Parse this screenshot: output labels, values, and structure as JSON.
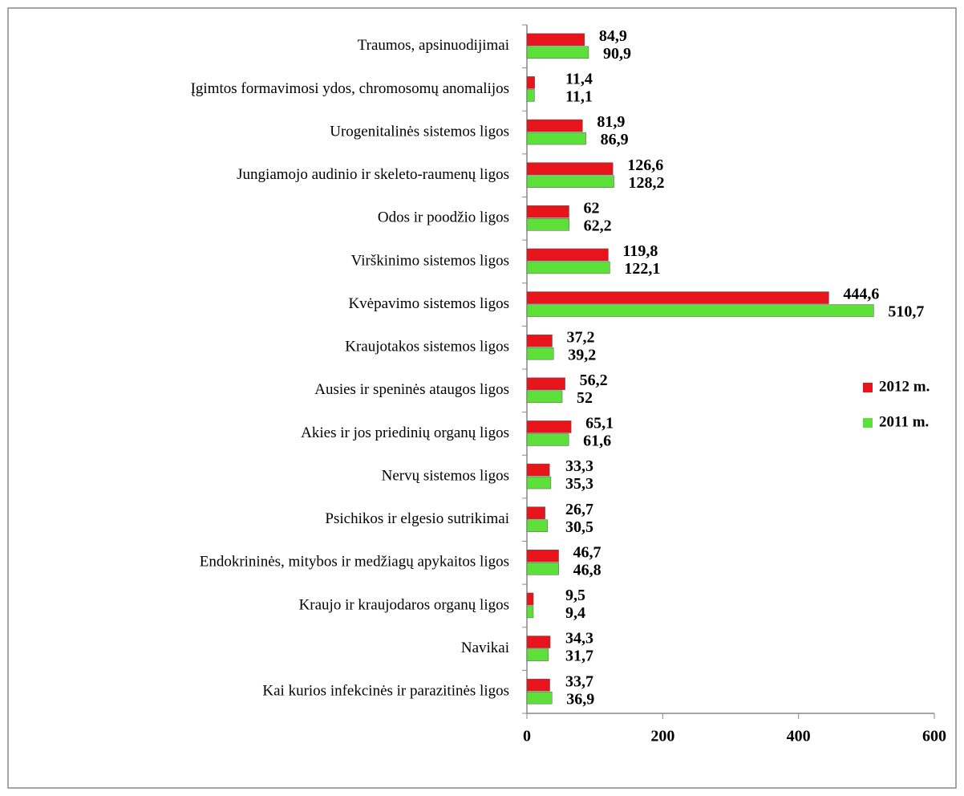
{
  "chart_data": {
    "type": "bar",
    "orientation": "horizontal",
    "categories": [
      "Traumos, apsinuodijimai",
      "Įgimtos formavimosi ydos, chromosomų anomalijos",
      "Urogenitalinės sistemos ligos",
      "Jungiamojo audinio ir skeleto-raumenų ligos",
      "Odos ir poodžio ligos",
      "Virškinimo sistemos ligos",
      "Kvėpavimo sistemos ligos",
      "Kraujotakos sistemos ligos",
      "Ausies ir speninės ataugos ligos",
      "Akies ir jos priedinių organų ligos",
      "Nervų sistemos ligos",
      "Psichikos ir elgesio sutrikimai",
      "Endokrininės, mitybos ir medžiagų apykaitos ligos",
      "Kraujo ir kraujodaros organų ligos",
      "Navikai",
      "Kai kurios infekcinės ir parazitinės ligos"
    ],
    "series": [
      {
        "name": "2012 m.",
        "color": "#e8141c",
        "values": [
          84.9,
          11.4,
          81.9,
          126.6,
          62,
          119.8,
          444.6,
          37.2,
          56.2,
          65.1,
          33.3,
          26.7,
          46.7,
          9.5,
          34.3,
          33.7
        ],
        "value_labels": [
          "84,9",
          "11,4",
          "81,9",
          "126,6",
          "62",
          "119,8",
          "444,6",
          "37,2",
          "56,2",
          "65,1",
          "33,3",
          "26,7",
          "46,7",
          "9,5",
          "34,3",
          "33,7"
        ]
      },
      {
        "name": "2011 m.",
        "color": "#5ee03a",
        "values": [
          90.9,
          11.1,
          86.9,
          128.2,
          62.2,
          122.1,
          510.7,
          39.2,
          52,
          61.6,
          35.3,
          30.5,
          46.8,
          9.4,
          31.7,
          36.9
        ],
        "value_labels": [
          "90,9",
          "11,1",
          "86,9",
          "128,2",
          "62,2",
          "122,1",
          "510,7",
          "39,2",
          "52",
          "61,6",
          "35,3",
          "30,5",
          "46,8",
          "9,4",
          "31,7",
          "36,9"
        ]
      }
    ],
    "xlim": [
      0,
      600
    ],
    "xticks": [
      0,
      200,
      400,
      600
    ],
    "legend": "right"
  }
}
